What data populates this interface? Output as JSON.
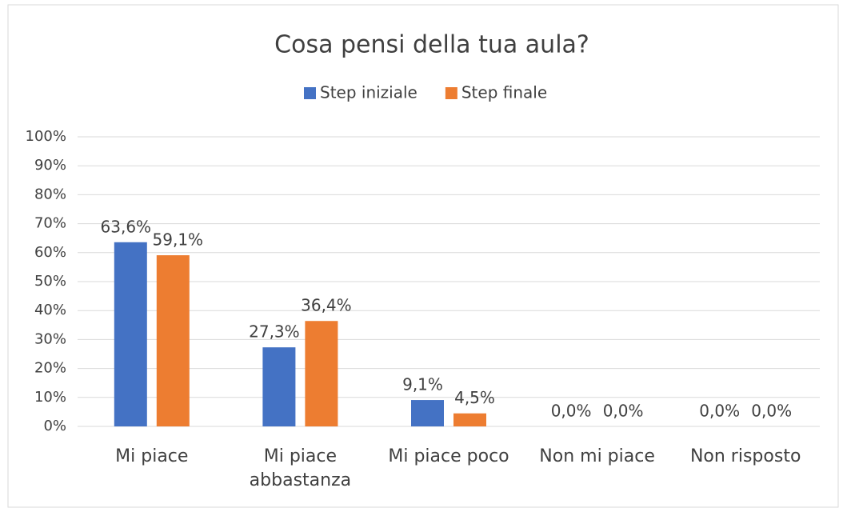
{
  "chart_data": {
    "type": "bar",
    "title": "Cosa pensi della tua aula?",
    "categories": [
      "Mi piace",
      "Mi piace abbastanza",
      "Mi piace poco",
      "Non mi piace",
      "Non risposto"
    ],
    "series": [
      {
        "name": "Step iniziale",
        "color": "#4472c4",
        "values": [
          63.6,
          27.3,
          9.1,
          0,
          0
        ],
        "value_labels": [
          "63,6%",
          "27,3%",
          "9,1%",
          "0,0%",
          "0,0%"
        ]
      },
      {
        "name": "Step finale",
        "color": "#ed7d31",
        "values": [
          59.1,
          36.4,
          4.5,
          0,
          0
        ],
        "value_labels": [
          "59,1%",
          "36,4%",
          "4,5%",
          "0,0%",
          "0,0%"
        ]
      }
    ],
    "ylim": [
      0,
      100
    ],
    "yticks": [
      {
        "value": 0,
        "label": "0%"
      },
      {
        "value": 10,
        "label": "10%"
      },
      {
        "value": 20,
        "label": "20%"
      },
      {
        "value": 30,
        "label": "30%"
      },
      {
        "value": 40,
        "label": "40%"
      },
      {
        "value": 50,
        "label": "50%"
      },
      {
        "value": 60,
        "label": "60%"
      },
      {
        "value": 70,
        "label": "70%"
      },
      {
        "value": 80,
        "label": "80%"
      },
      {
        "value": 90,
        "label": "90%"
      },
      {
        "value": 100,
        "label": "100%"
      }
    ],
    "grid": true,
    "legend": "top"
  }
}
